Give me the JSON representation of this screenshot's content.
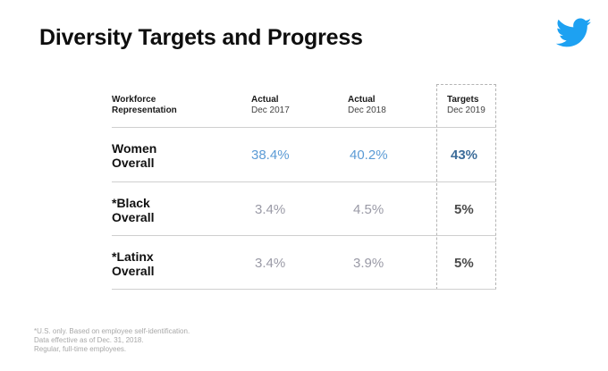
{
  "title": "Diversity Targets and Progress",
  "logo": {
    "icon": "twitter-bird-icon",
    "color": "#1da1f2"
  },
  "table": {
    "headers": {
      "category": [
        "Workforce",
        "Representation"
      ],
      "col1": [
        "Actual",
        "Dec 2017"
      ],
      "col2": [
        "Actual",
        "Dec 2018"
      ],
      "col3": [
        "Targets",
        "Dec 2019"
      ]
    },
    "rows": [
      {
        "label": [
          "Women",
          "Overall"
        ],
        "dec2017": "38.4%",
        "dec2018": "40.2%",
        "target2019": "43%"
      },
      {
        "label": [
          "*Black",
          "Overall"
        ],
        "dec2017": "3.4%",
        "dec2018": "4.5%",
        "target2019": "5%"
      },
      {
        "label": [
          "*Latinx",
          "Overall"
        ],
        "dec2017": "3.4%",
        "dec2018": "3.9%",
        "target2019": "5%"
      }
    ]
  },
  "footnotes": [
    "*U.S. only. Based on employee self-identification.",
    "Data effective as of Dec. 31, 2018.",
    "Regular, full-time employees."
  ],
  "colors": {
    "women_values": "#5b9bd5",
    "women_target": "#3d6d9a",
    "other_values": "#9a9aa6",
    "other_target": "#4a4a4a"
  }
}
